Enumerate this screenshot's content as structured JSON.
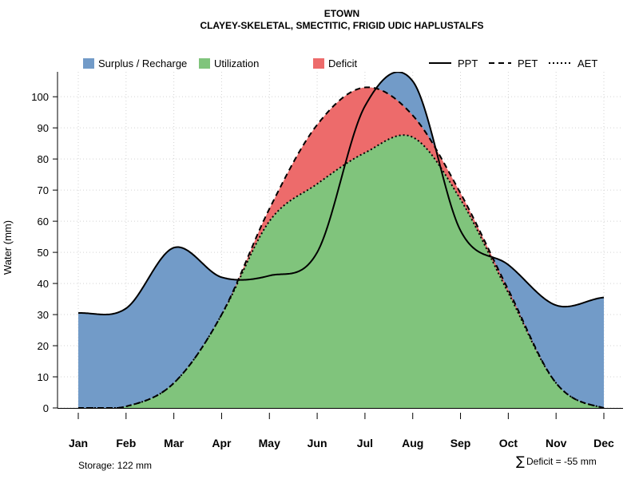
{
  "chart_data": {
    "type": "area",
    "title": "ETOWN",
    "subtitle": "CLAYEY-SKELETAL, SMECTITIC, FRIGID UDIC HAPLUSTALFS",
    "xlabel": "",
    "ylabel": "Water (mm)",
    "categories": [
      "Jan",
      "Feb",
      "Mar",
      "Apr",
      "May",
      "Jun",
      "Jul",
      "Aug",
      "Sep",
      "Oct",
      "Nov",
      "Dec"
    ],
    "ylim": [
      0,
      108
    ],
    "yticks": [
      0,
      10,
      20,
      30,
      40,
      50,
      60,
      70,
      80,
      90,
      100
    ],
    "grid": true,
    "series": [
      {
        "name": "PPT",
        "line": "solid",
        "values": [
          30.5,
          32,
          51.5,
          42,
          42.5,
          50,
          97,
          105,
          57,
          46,
          33,
          35.5
        ]
      },
      {
        "name": "PET",
        "line": "dashed",
        "values": [
          0,
          0.5,
          8,
          30,
          64,
          91,
          103,
          94,
          69,
          38,
          8,
          0
        ]
      },
      {
        "name": "AET",
        "line": "dotted",
        "values": [
          0,
          0.5,
          8,
          30,
          60,
          72,
          82,
          87,
          67,
          37,
          8,
          0
        ]
      }
    ],
    "fills": [
      {
        "name": "Surplus / Recharge",
        "color": "#729bc8"
      },
      {
        "name": "Utilization",
        "color": "#80c47c"
      },
      {
        "name": "Deficit",
        "color": "#ed6b6b"
      }
    ],
    "legend_position": "top",
    "annotations": {
      "storage": "Storage: 122 mm",
      "deficit_symbol": "∑",
      "deficit": "Deficit = -55 mm"
    }
  },
  "colors": {
    "surplus": "#729bc8",
    "utilization": "#80c47c",
    "deficit": "#ed6b6b",
    "grid": "#d3d3d3"
  }
}
